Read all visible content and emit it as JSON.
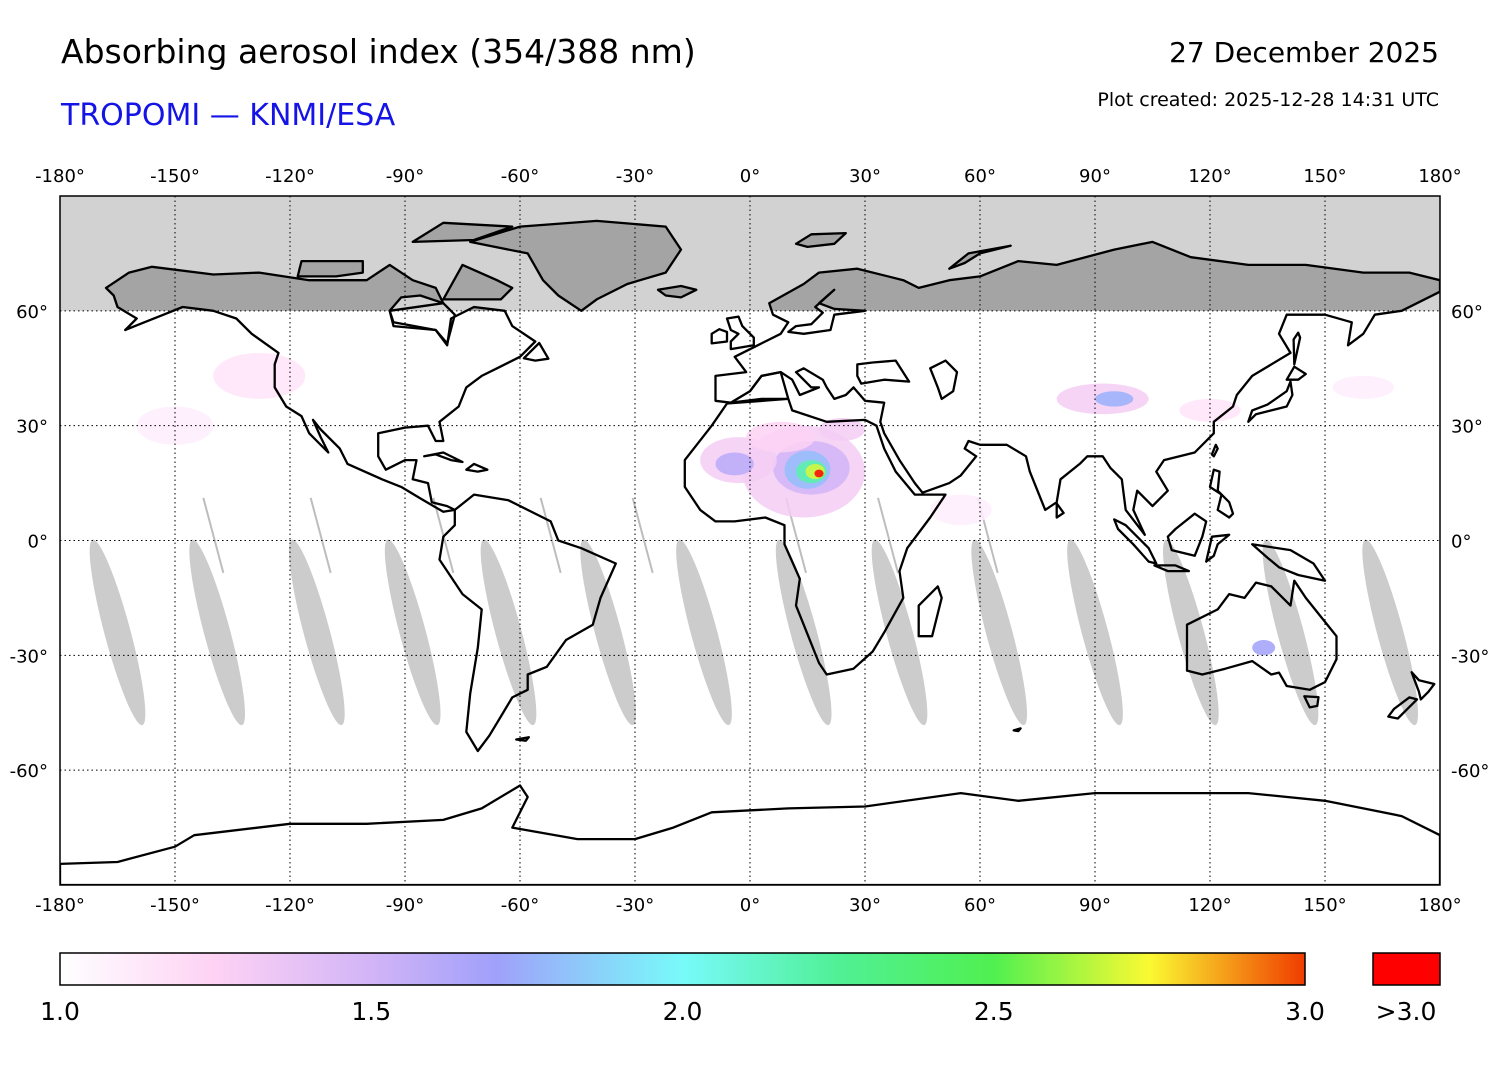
{
  "header": {
    "title": "Absorbing aerosol index (354/388 nm)",
    "subtitle": "TROPOMI — KNMI/ESA",
    "date": "27 December 2025",
    "created": "Plot created: 2025-12-28 14:31 UTC"
  },
  "map": {
    "lon_ticks": [
      -180,
      -150,
      -120,
      -90,
      -60,
      -30,
      0,
      30,
      60,
      90,
      120,
      150,
      180
    ],
    "lon_labels": [
      "-180°",
      "-150°",
      "-120°",
      "-90°",
      "-60°",
      "-30°",
      "0°",
      "30°",
      "60°",
      "90°",
      "120°",
      "150°",
      "180°"
    ],
    "lat_ticks": [
      60,
      30,
      0,
      -30,
      -60
    ],
    "lat_labels": [
      "60°",
      "30°",
      "0°",
      "-30°",
      "-60°"
    ],
    "lon_range": [
      -180,
      180
    ],
    "lat_range": [
      -90,
      90
    ],
    "polar_night_lat": 60,
    "colors": {
      "coast": "#000000",
      "polar_fill": "#d2d2d2",
      "polar_land": "#a4a4a4",
      "swath_gap": "#cccccc",
      "grid": "#000000"
    }
  },
  "colorbar": {
    "labels": [
      "1.0",
      "1.5",
      "2.0",
      "2.5",
      "3.0"
    ],
    "label_values": [
      1.0,
      1.5,
      2.0,
      2.5,
      3.0
    ],
    "overflow_label": ">3.0",
    "overflow_color": "#ff0000",
    "stops": [
      {
        "value": 1.0,
        "color": "#ffffff"
      },
      {
        "value": 1.25,
        "color": "#fdd2f4"
      },
      {
        "value": 1.5,
        "color": "#d2b4f7"
      },
      {
        "value": 1.7,
        "color": "#a0a0fa"
      },
      {
        "value": 2.0,
        "color": "#78fafa"
      },
      {
        "value": 2.25,
        "color": "#50f096"
      },
      {
        "value": 2.5,
        "color": "#50f050"
      },
      {
        "value": 2.75,
        "color": "#fafa32"
      },
      {
        "value": 3.0,
        "color": "#f03c00"
      }
    ]
  }
}
